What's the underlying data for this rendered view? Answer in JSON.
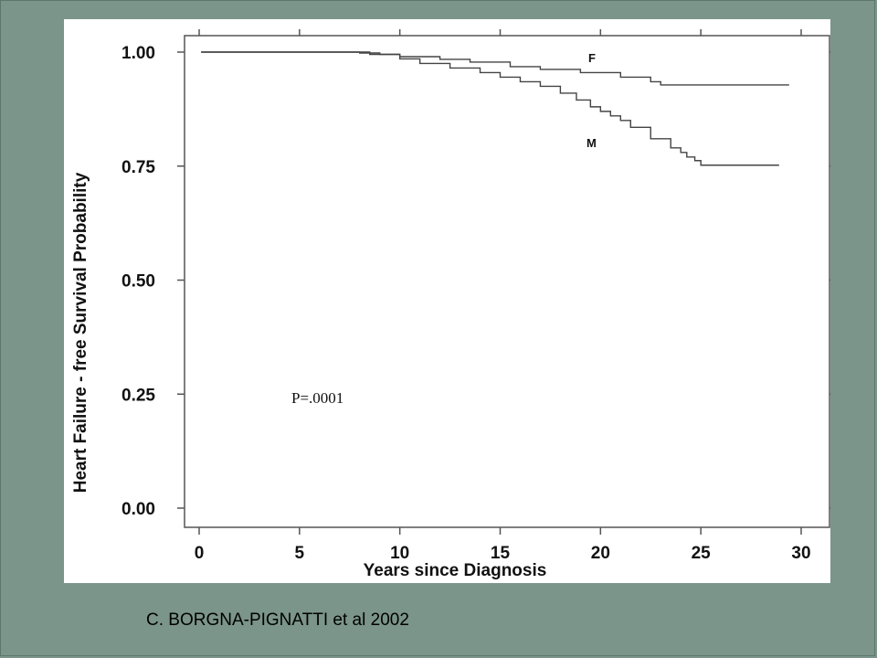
{
  "citation": "C. BORGNA-PIGNATTI et al 2002",
  "chart_data": {
    "type": "line",
    "xlabel": "Years since Diagnosis",
    "ylabel": "Heart Failure - free Survival Probability",
    "xlim": [
      0,
      30
    ],
    "ylim": [
      0,
      1
    ],
    "x_ticks": [
      "0",
      "5",
      "10",
      "15",
      "20",
      "25",
      "30"
    ],
    "y_ticks": [
      "0.00",
      "0.25",
      "0.50",
      "0.75",
      "1.00"
    ],
    "x_tick_values": [
      0,
      5,
      10,
      15,
      20,
      25,
      30
    ],
    "y_tick_values": [
      0,
      0.25,
      0.5,
      0.75,
      1.0
    ],
    "grid": false,
    "annotation": "P=.0001",
    "series": [
      {
        "name": "F",
        "step": true,
        "x": [
          0.1,
          5.0,
          8.0,
          9.0,
          10.0,
          12.0,
          13.5,
          15.5,
          17.0,
          19.0,
          21.0,
          22.5,
          23.0,
          29.4
        ],
        "y": [
          1.0,
          1.0,
          0.998,
          0.995,
          0.99,
          0.984,
          0.978,
          0.968,
          0.962,
          0.955,
          0.945,
          0.935,
          0.928,
          0.928
        ]
      },
      {
        "name": "M",
        "step": true,
        "x": [
          0.1,
          5.5,
          8.5,
          10.0,
          11.0,
          12.5,
          14.0,
          15.0,
          16.0,
          17.0,
          18.0,
          18.8,
          19.5,
          20.0,
          20.5,
          21.0,
          21.5,
          22.5,
          23.5,
          24.0,
          24.3,
          24.7,
          25.0,
          28.9
        ],
        "y": [
          1.0,
          1.0,
          0.995,
          0.985,
          0.975,
          0.965,
          0.955,
          0.945,
          0.935,
          0.925,
          0.91,
          0.895,
          0.88,
          0.87,
          0.86,
          0.85,
          0.835,
          0.81,
          0.79,
          0.78,
          0.77,
          0.762,
          0.752,
          0.752
        ]
      }
    ]
  }
}
